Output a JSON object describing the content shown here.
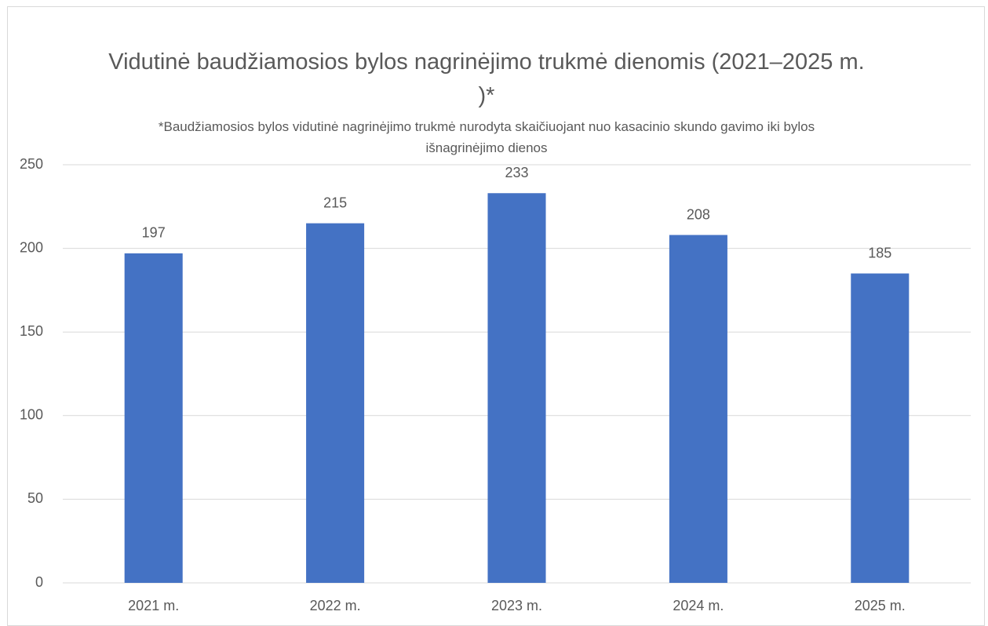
{
  "chart_data": {
    "type": "bar",
    "title": "Vidutinė baudžiamosios bylos nagrinėjimo trukmė dienomis (2021–2025 m. )*",
    "subtitle": "*Baudžiamosios bylos vidutinė nagrinėjimo trukmė nurodyta skaičiuojant nuo kasacinio skundo gavimo iki bylos išnagrinėjimo dienos",
    "categories": [
      "2021 m.",
      "2022 m.",
      "2023 m.",
      "2024 m.",
      "2025 m."
    ],
    "values": [
      197,
      215,
      233,
      208,
      185
    ],
    "color": "#4472c4",
    "ylim": [
      0,
      250
    ],
    "yticks": [
      0,
      50,
      100,
      150,
      200,
      250
    ],
    "grid": true
  }
}
